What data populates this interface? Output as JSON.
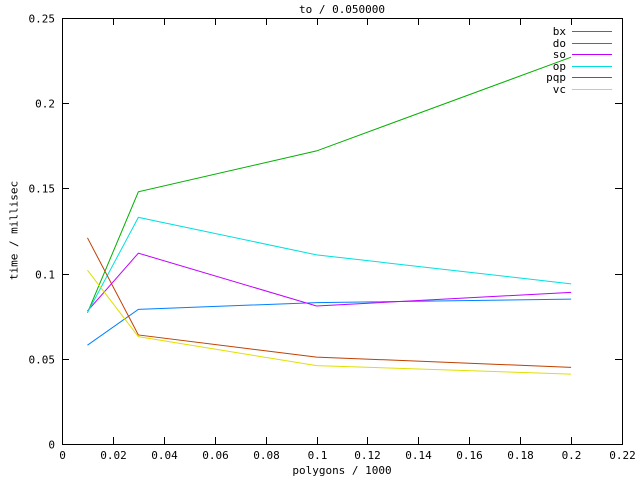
{
  "window": {
    "background": "#ffffff"
  },
  "chart_data": {
    "type": "line",
    "title": "to / 0.050000",
    "xlabel": "polygons / 1000",
    "ylabel": "time / millisec",
    "xlim": [
      0,
      0.22
    ],
    "ylim": [
      0,
      0.25
    ],
    "xticks": [
      0,
      0.02,
      0.04,
      0.06,
      0.08,
      0.1,
      0.12,
      0.14,
      0.16,
      0.18,
      0.2,
      0.22
    ],
    "xtick_labels": [
      "0",
      "0.02",
      "0.04",
      "0.06",
      "0.08",
      "0.1",
      "0.12",
      "0.14",
      "0.16",
      "0.18",
      "0.2",
      "0.22"
    ],
    "yticks": [
      0,
      0.05,
      0.1,
      0.15,
      0.2,
      0.25
    ],
    "ytick_labels": [
      "0",
      "0.05",
      "0.1",
      "0.15",
      "0.2",
      "0.25"
    ],
    "x": [
      0.01,
      0.03,
      0.1,
      0.2
    ],
    "series": [
      {
        "name": "bx",
        "color": "#00b000",
        "values": [
          0.077,
          0.148,
          0.172,
          0.227
        ]
      },
      {
        "name": "do",
        "color": "#0080ff",
        "values": [
          0.058,
          0.079,
          0.083,
          0.085
        ]
      },
      {
        "name": "so",
        "color": "#c000ff",
        "values": [
          0.078,
          0.112,
          0.081,
          0.089
        ]
      },
      {
        "name": "op",
        "color": "#00e0e0",
        "values": [
          0.077,
          0.133,
          0.111,
          0.094
        ]
      },
      {
        "name": "pqp",
        "color": "#c04000",
        "values": [
          0.121,
          0.064,
          0.051,
          0.045
        ]
      },
      {
        "name": "vc",
        "color": "#e0e000",
        "values": [
          0.102,
          0.063,
          0.046,
          0.041
        ]
      }
    ],
    "legend_position": "top-right",
    "grid": false,
    "axis_color": "#000000",
    "text_color": "#000000"
  }
}
